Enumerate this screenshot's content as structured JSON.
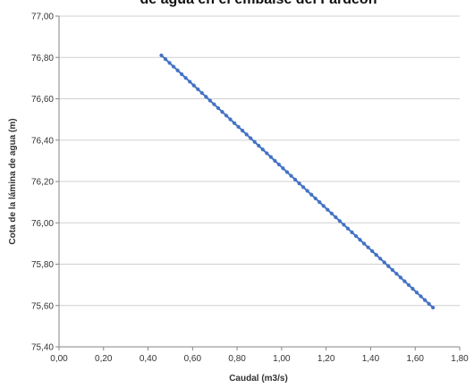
{
  "chart_data": {
    "type": "scatter",
    "title": "de agua en el embalse del Fardeón",
    "xlabel": "Caudal (m3/s)",
    "ylabel": "Cota de la lámina de agua (m)",
    "xlim": [
      0.0,
      1.8
    ],
    "ylim": [
      75.4,
      77.0
    ],
    "x_ticks": [
      "0,00",
      "0,20",
      "0,40",
      "0,60",
      "0,80",
      "1,00",
      "1,20",
      "1,40",
      "1,60",
      "1,80"
    ],
    "y_ticks": [
      "75,40",
      "75,60",
      "75,80",
      "76,00",
      "76,20",
      "76,40",
      "76,60",
      "76,80",
      "77,00"
    ],
    "grid": "horizontal",
    "legend": "none",
    "colors": {
      "series": "#4472C4",
      "grid": "#d0d0d0",
      "axis": "#868686"
    },
    "series": [
      {
        "x_start": 0.46,
        "x_end": 1.68,
        "y_start": 76.81,
        "y_end": 75.59,
        "point_count": 68
      }
    ]
  }
}
